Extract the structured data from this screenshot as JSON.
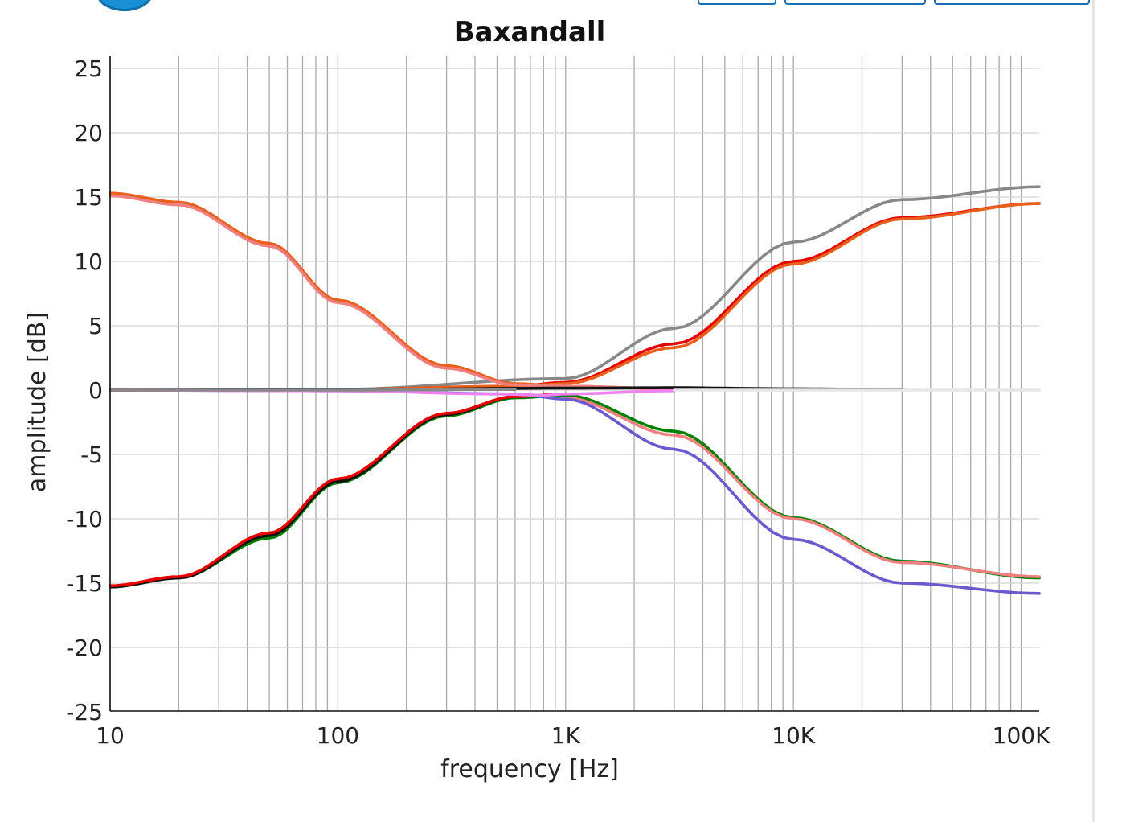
{
  "page_header": {
    "logo_icon": "app-logo-icon"
  },
  "chart_data": {
    "type": "line",
    "title": "Baxandall",
    "xlabel": "frequency [Hz]",
    "ylabel": "amplitude [dB]",
    "x_scale": "log",
    "xlim": [
      10,
      120000
    ],
    "ylim": [
      -25,
      26
    ],
    "grid": true,
    "legend": "none",
    "x_ticks": [
      {
        "value": 10,
        "label": "10"
      },
      {
        "value": 100,
        "label": "100"
      },
      {
        "value": 1000,
        "label": "1K"
      },
      {
        "value": 10000,
        "label": "10K"
      },
      {
        "value": 100000,
        "label": "100K"
      }
    ],
    "y_ticks": [
      {
        "value": 25,
        "label": "25"
      },
      {
        "value": 20,
        "label": "20"
      },
      {
        "value": 15,
        "label": "15"
      },
      {
        "value": 10,
        "label": "10"
      },
      {
        "value": 5,
        "label": "5"
      },
      {
        "value": 0,
        "label": "0"
      },
      {
        "value": -5,
        "label": "-5"
      },
      {
        "value": -10,
        "label": "-10"
      },
      {
        "value": -15,
        "label": "-15"
      },
      {
        "value": -20,
        "label": "-20"
      },
      {
        "value": -25,
        "label": "-25"
      }
    ],
    "series": [
      {
        "color": "#888888",
        "x": [
          10,
          100,
          1000,
          3000,
          10000,
          30000,
          120000
        ],
        "values": [
          0,
          0.05,
          0.9,
          4.8,
          11.5,
          14.8,
          15.8
        ]
      },
      {
        "color": "#e60000",
        "x": [
          10,
          100,
          600,
          1000,
          3000,
          10000,
          30000,
          120000
        ],
        "values": [
          0,
          0.05,
          0.3,
          0.6,
          3.6,
          10.0,
          13.4,
          14.5
        ]
      },
      {
        "color": "#e8601c",
        "x": [
          10,
          100,
          600,
          1000,
          3000,
          10000,
          30000,
          120000
        ],
        "values": [
          0,
          0.05,
          0.3,
          0.5,
          3.3,
          9.8,
          13.3,
          14.5
        ]
      },
      {
        "color": "#e8601c",
        "x": [
          10,
          20,
          50,
          100,
          300,
          600,
          1000,
          3000
        ],
        "values": [
          15.3,
          14.6,
          11.4,
          7.0,
          1.9,
          0.5,
          0.3,
          0.1
        ]
      },
      {
        "color": "#f08080",
        "x": [
          10,
          20,
          50,
          100,
          300,
          600,
          1000,
          3000
        ],
        "values": [
          15.1,
          14.4,
          11.2,
          6.8,
          1.7,
          0.4,
          0.3,
          0.1
        ]
      },
      {
        "color": "#008000",
        "x": [
          10,
          20,
          50,
          100,
          300,
          600,
          1000,
          3000,
          10000,
          30000,
          120000
        ],
        "values": [
          -15.3,
          -14.6,
          -11.5,
          -7.2,
          -2.0,
          -0.6,
          -0.4,
          -3.2,
          -9.9,
          -13.3,
          -14.6
        ]
      },
      {
        "color": "#111111",
        "x": [
          10,
          20,
          50,
          100,
          300,
          600,
          1000
        ],
        "values": [
          -15.3,
          -14.6,
          -11.3,
          -7.1,
          -1.9,
          -0.5,
          -0.3
        ]
      },
      {
        "color": "#e60000",
        "x": [
          10,
          20,
          50,
          100,
          300,
          600,
          1000
        ],
        "values": [
          -15.2,
          -14.5,
          -11.1,
          -6.9,
          -1.8,
          -0.5,
          -0.3
        ]
      },
      {
        "color": "#f08080",
        "x": [
          1000,
          3000,
          10000,
          30000,
          120000
        ],
        "values": [
          -0.6,
          -3.5,
          -10.0,
          -13.4,
          -14.5
        ]
      },
      {
        "color": "#6a5acd",
        "x": [
          10,
          100,
          600,
          1000,
          3000,
          10000,
          30000,
          120000
        ],
        "values": [
          0,
          -0.05,
          -0.3,
          -0.7,
          -4.6,
          -11.6,
          -15.0,
          -15.8
        ]
      },
      {
        "color": "#111111",
        "x": [
          10,
          100,
          1000,
          3000,
          10000,
          30000
        ],
        "values": [
          0,
          0.02,
          0.15,
          0.18,
          0.1,
          0.03
        ]
      },
      {
        "color": "#ee82ee",
        "x": [
          10,
          100,
          500,
          800,
          1000,
          3000
        ],
        "values": [
          0,
          -0.05,
          -0.3,
          -0.4,
          -0.3,
          -0.05
        ]
      },
      {
        "color": "#e6e6e6",
        "x": [
          3000,
          10000,
          30000,
          120000
        ],
        "values": [
          0,
          0,
          0,
          0
        ]
      },
      {
        "color": "#888888",
        "x": [
          10,
          100,
          600
        ],
        "values": [
          0,
          0,
          0.05
        ]
      }
    ]
  }
}
